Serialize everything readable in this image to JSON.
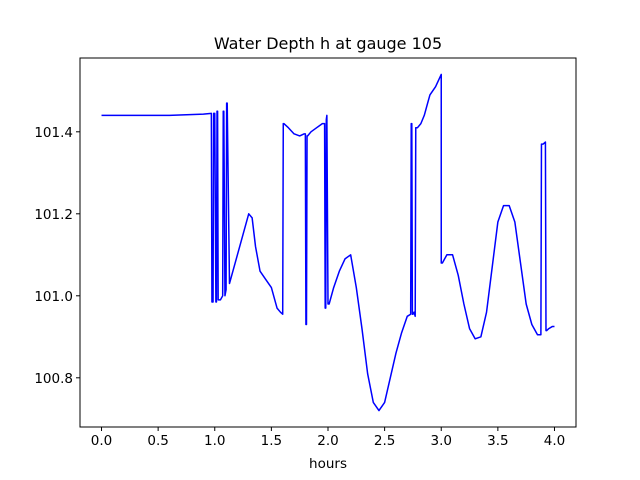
{
  "chart_data": {
    "type": "line",
    "title": "Water Depth h at gauge 105",
    "xlabel": "hours",
    "ylabel": "",
    "xlim": [
      -0.19,
      4.19
    ],
    "ylim": [
      100.68,
      101.58
    ],
    "xticks": [
      0.0,
      0.5,
      1.0,
      1.5,
      2.0,
      2.5,
      3.0,
      3.5,
      4.0
    ],
    "xtick_labels": [
      "0.0",
      "0.5",
      "1.0",
      "1.5",
      "2.0",
      "2.5",
      "3.0",
      "3.5",
      "4.0"
    ],
    "yticks": [
      100.8,
      101.0,
      101.2,
      101.4
    ],
    "ytick_labels": [
      "100.8",
      "101.0",
      "101.2",
      "101.4"
    ],
    "grid": false,
    "legend": "none",
    "series": [
      {
        "color": "#0000ff",
        "x": [
          0.0,
          0.3,
          0.6,
          0.9,
          0.97,
          0.975,
          0.985,
          0.99,
          1.0,
          1.01,
          1.015,
          1.02,
          1.025,
          1.03,
          1.05,
          1.07,
          1.075,
          1.08,
          1.09,
          1.1,
          1.105,
          1.11,
          1.13,
          1.16,
          1.2,
          1.25,
          1.3,
          1.33,
          1.36,
          1.4,
          1.45,
          1.5,
          1.55,
          1.58,
          1.6,
          1.605,
          1.61,
          1.65,
          1.7,
          1.75,
          1.79,
          1.8,
          1.805,
          1.81,
          1.815,
          1.82,
          1.85,
          1.9,
          1.95,
          1.97,
          1.975,
          1.98,
          1.985,
          1.99,
          2.0,
          2.005,
          2.01,
          2.05,
          2.1,
          2.15,
          2.2,
          2.25,
          2.3,
          2.35,
          2.4,
          2.45,
          2.5,
          2.55,
          2.6,
          2.65,
          2.7,
          2.73,
          2.735,
          2.74,
          2.745,
          2.75,
          2.76,
          2.77,
          2.775,
          2.78,
          2.785,
          2.79,
          2.82,
          2.85,
          2.88,
          2.9,
          2.95,
          3.0,
          3.0,
          3.01,
          3.05,
          3.1,
          3.15,
          3.2,
          3.25,
          3.3,
          3.35,
          3.4,
          3.45,
          3.5,
          3.55,
          3.6,
          3.65,
          3.7,
          3.75,
          3.8,
          3.85,
          3.88,
          3.885,
          3.89,
          3.9,
          3.92,
          3.925,
          3.93,
          3.95,
          3.98,
          4.0
        ],
        "y": [
          101.44,
          101.44,
          101.44,
          101.443,
          101.445,
          100.985,
          100.985,
          101.445,
          101.445,
          100.985,
          100.985,
          101.45,
          101.45,
          100.99,
          100.99,
          101.0,
          101.45,
          101.45,
          101.0,
          101.015,
          101.47,
          101.47,
          101.03,
          101.06,
          101.1,
          101.15,
          101.2,
          101.19,
          101.12,
          101.06,
          101.04,
          101.02,
          100.97,
          100.96,
          100.955,
          101.42,
          101.42,
          101.41,
          101.395,
          101.39,
          101.395,
          101.395,
          100.93,
          100.93,
          101.39,
          101.39,
          101.4,
          101.41,
          101.42,
          101.42,
          100.97,
          100.97,
          101.43,
          101.44,
          100.98,
          100.98,
          100.98,
          101.02,
          101.06,
          101.09,
          101.1,
          101.02,
          100.92,
          100.81,
          100.74,
          100.72,
          100.74,
          100.8,
          100.86,
          100.91,
          100.95,
          100.955,
          101.42,
          101.42,
          100.955,
          100.955,
          100.96,
          100.95,
          101.41,
          101.41,
          101.41,
          101.41,
          101.42,
          101.44,
          101.47,
          101.49,
          101.51,
          101.54,
          101.08,
          101.08,
          101.1,
          101.1,
          101.05,
          100.98,
          100.92,
          100.895,
          100.9,
          100.96,
          101.07,
          101.18,
          101.22,
          101.22,
          101.18,
          101.08,
          100.98,
          100.93,
          100.905,
          100.905,
          101.37,
          101.37,
          101.37,
          101.375,
          100.915,
          100.915,
          100.92,
          100.925,
          100.925
        ]
      }
    ]
  }
}
